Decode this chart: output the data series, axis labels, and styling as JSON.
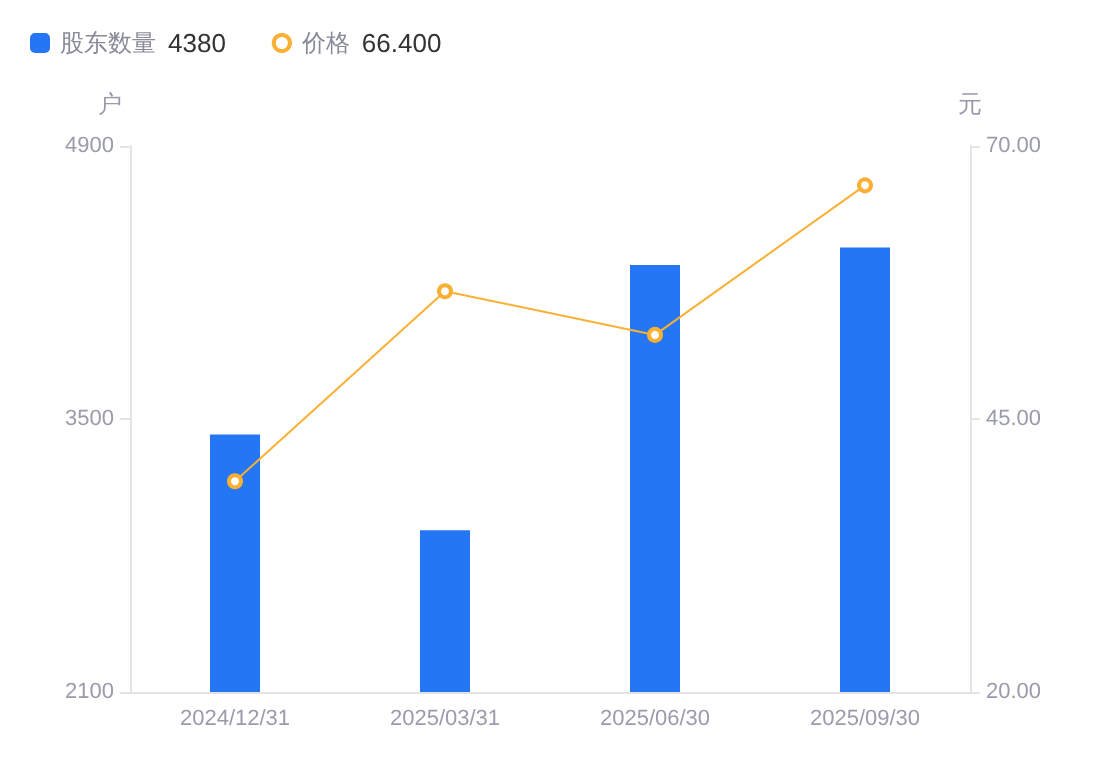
{
  "chart_data": {
    "type": "bar",
    "categories": [
      "2024/12/31",
      "2025/03/31",
      "2025/06/30",
      "2025/09/30"
    ],
    "series": [
      {
        "name": "股东数量",
        "color": "#2476f4",
        "values": [
          3420,
          2930,
          4290,
          4380
        ]
      },
      {
        "name": "价格",
        "type": "line",
        "axis": "y2",
        "color": "#f9b035",
        "marker": "circle",
        "values": [
          39.3,
          56.7,
          52.7,
          66.4
        ]
      }
    ],
    "annotations": [
      "4380",
      "66.400"
    ],
    "ylabel": "户",
    "y2label": "元",
    "ylim": [
      2100,
      4900
    ],
    "yticks": [
      2100,
      3500,
      4900
    ],
    "y2lim": [
      20,
      70
    ],
    "y2ticks": [
      {
        "value": 20,
        "label": "20.00"
      },
      {
        "value": 45,
        "label": "45.00"
      },
      {
        "value": 70,
        "label": "70.00"
      }
    ],
    "grid": false,
    "legend": "top left"
  }
}
